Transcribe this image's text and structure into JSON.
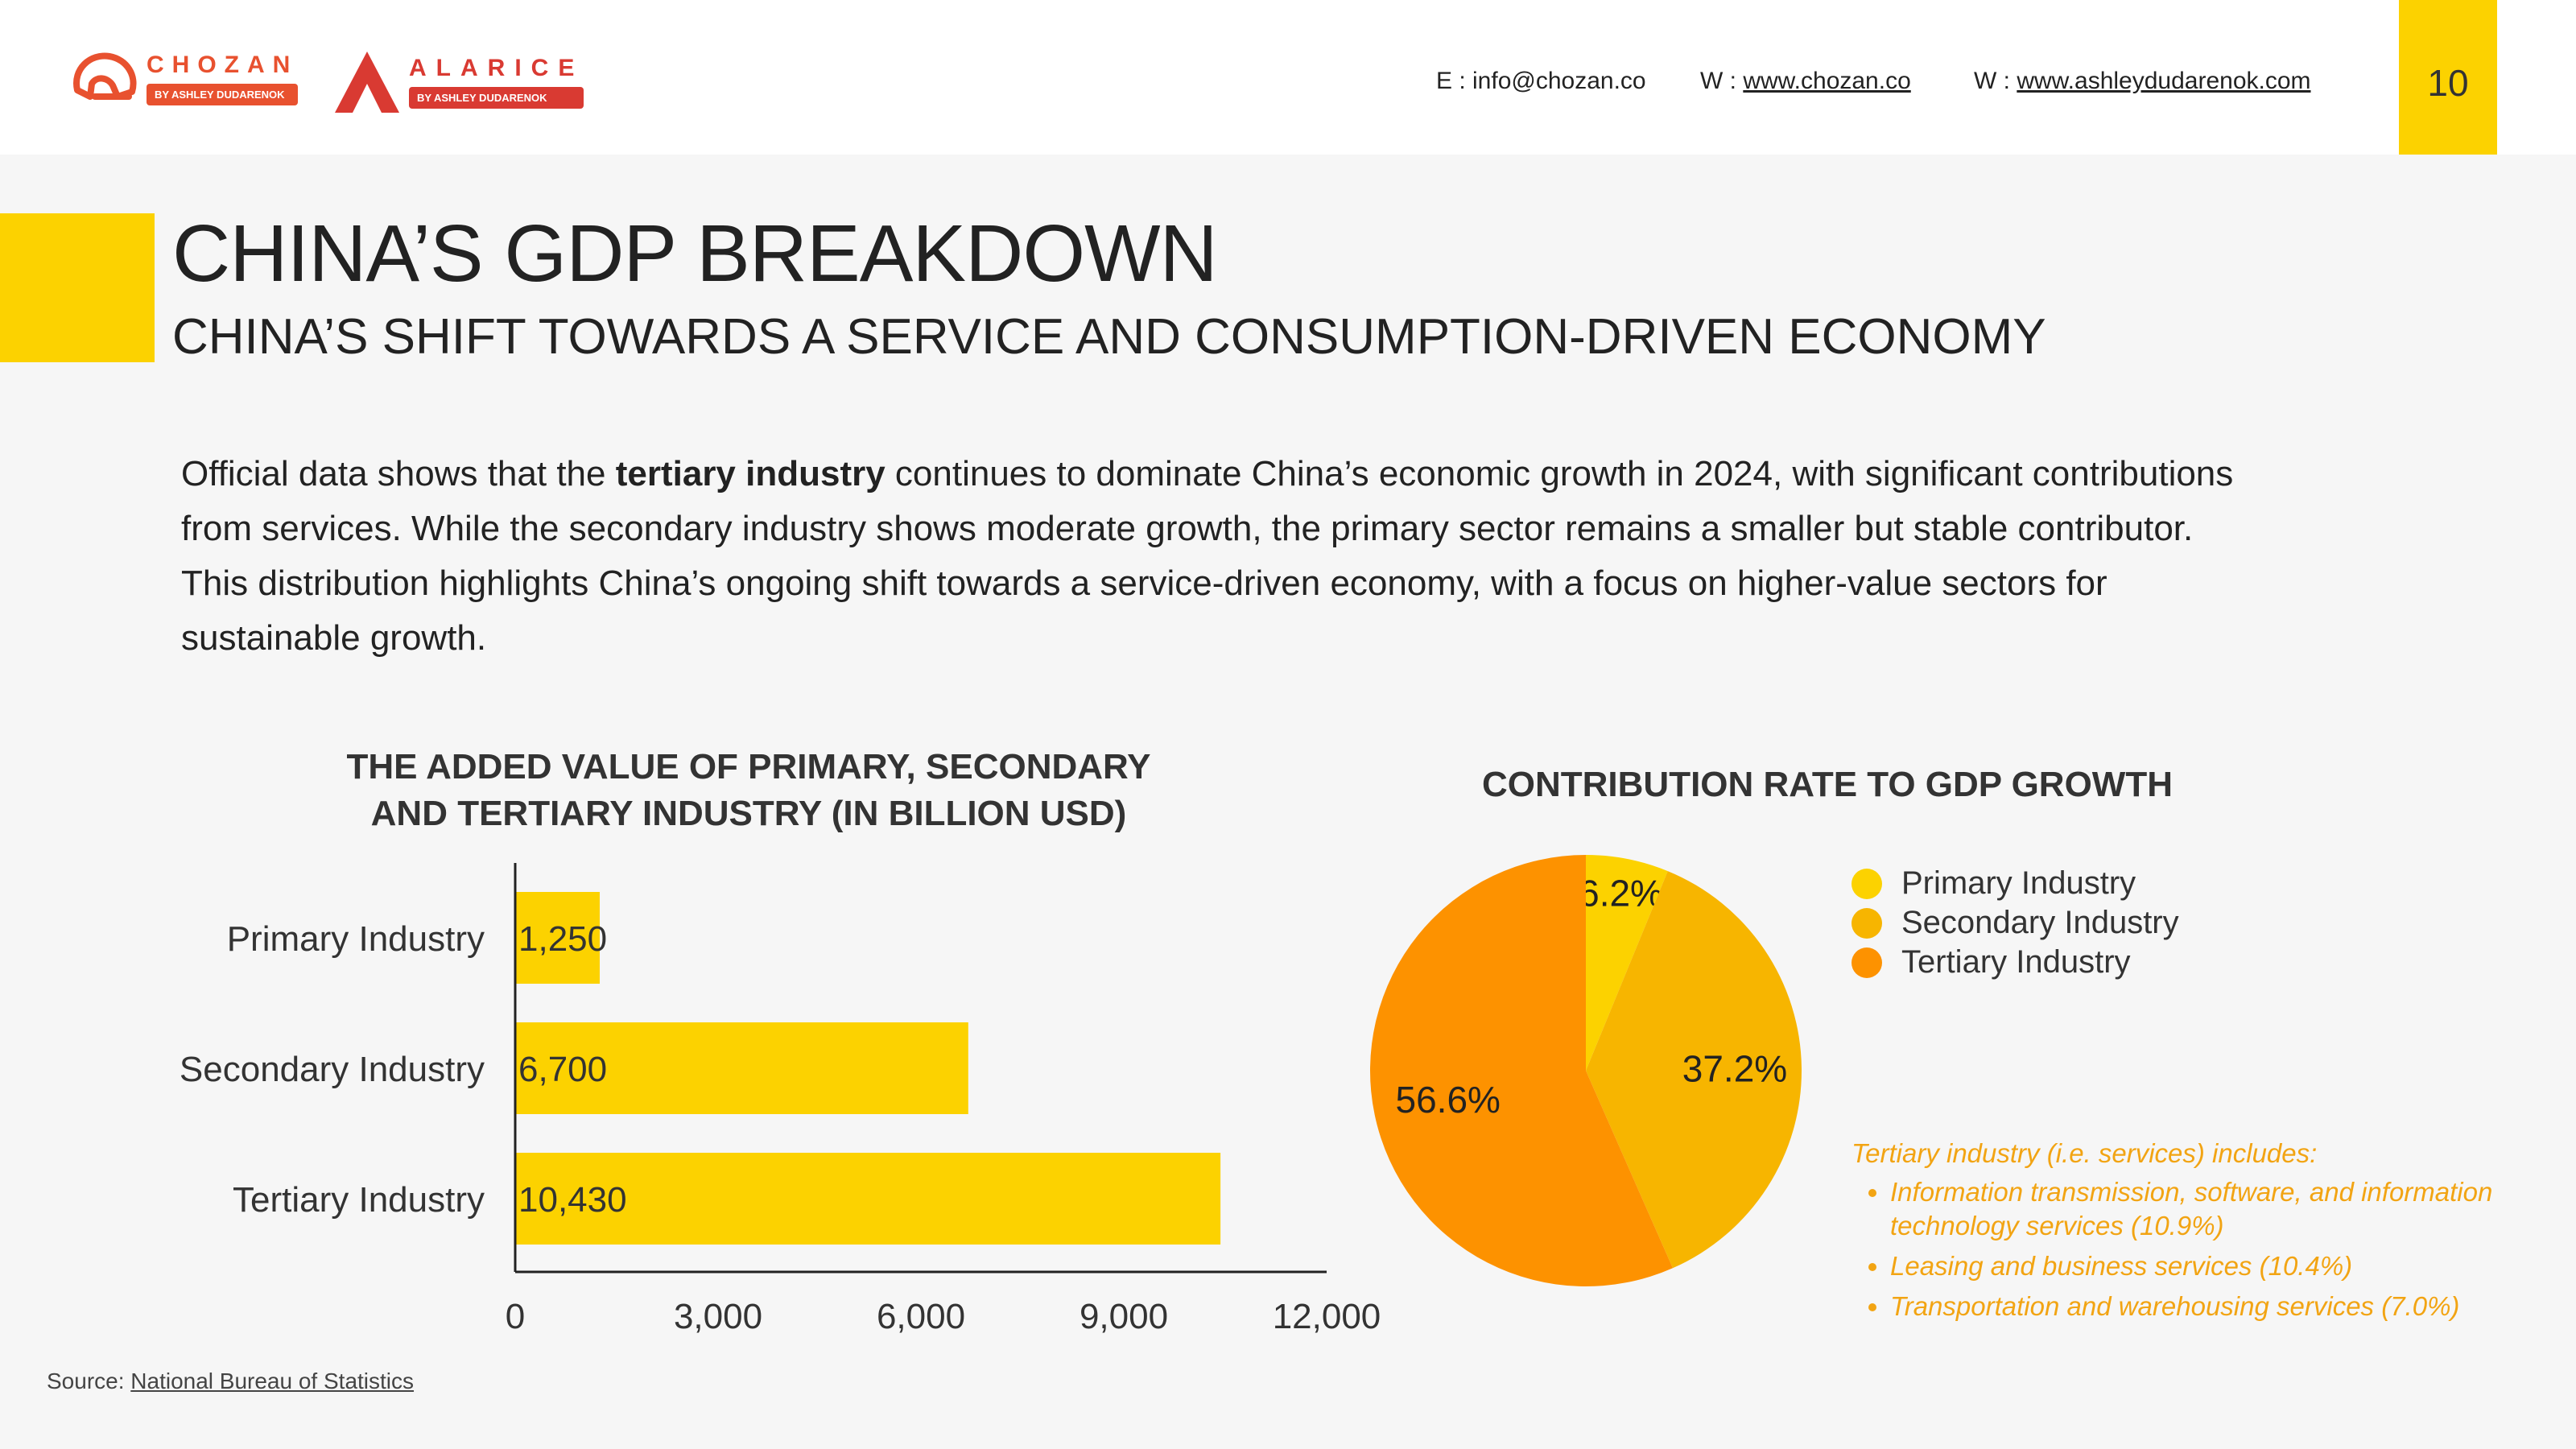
{
  "header": {
    "logos": [
      {
        "word": "CHOZAN",
        "sub": "BY ASHLEY DUDARENOK",
        "color": "#e8512f"
      },
      {
        "word": "ALARICE",
        "sub": "BY ASHLEY DUDARENOK",
        "color": "#d93a32"
      }
    ],
    "email_label": "E : info@chozan.co",
    "web1_prefix": "W : ",
    "web1_link": "www.chozan.co",
    "web2_prefix": "W : ",
    "web2_link": "www.ashleydudarenok.com",
    "page_number": "10"
  },
  "title": "CHINA’S GDP BREAKDOWN",
  "subtitle": "CHINA’S SHIFT TOWARDS A SERVICE AND CONSUMPTION-DRIVEN ECONOMY",
  "intro": {
    "before": "Official data shows that the ",
    "bold": "tertiary industry",
    "after": " continues to dominate China’s economic growth in 2024, with significant contributions from services. While the secondary industry shows moderate growth, the primary sector remains a smaller but stable contributor. This distribution highlights China’s ongoing shift towards a service-driven economy, with a focus on higher-value sectors for sustainable growth."
  },
  "colors": {
    "accent": "#fcd200",
    "primary": "#fcd200",
    "secondary": "#f7b500",
    "tertiary": "#fd9200",
    "note": "#f2a413"
  },
  "chart_data": [
    {
      "type": "bar",
      "orientation": "horizontal",
      "title_lines": [
        "THE ADDED VALUE OF PRIMARY, SECONDARY",
        "AND TERTIARY INDUSTRY (IN BILLION USD)"
      ],
      "categories": [
        "Primary Industry",
        "Secondary Industry",
        "Tertiary Industry"
      ],
      "values": [
        1250,
        6700,
        10430
      ],
      "value_labels": [
        "1,250",
        "6,700",
        "10,430"
      ],
      "xlim": [
        0,
        12000
      ],
      "xticks": [
        0,
        3000,
        6000,
        9000,
        12000
      ],
      "xtick_labels": [
        "0",
        "3,000",
        "6,000",
        "9,000",
        "12,000"
      ],
      "grid": false
    },
    {
      "type": "pie",
      "title": "CONTRIBUTION RATE TO GDP GROWTH",
      "labels": [
        "Primary Industry",
        "Secondary Industry",
        "Tertiary Industry"
      ],
      "values": [
        6.2,
        37.2,
        56.6
      ],
      "value_labels": [
        "6.2%",
        "37.2%",
        "56.6%"
      ],
      "legend_position": "right"
    }
  ],
  "note": {
    "heading": "Tertiary industry (i.e. services) includes:",
    "items": [
      "Information transmission, software, and information technology services (10.9%)",
      "Leasing and business services (10.4%)",
      "Transportation and warehousing services (7.0%)"
    ]
  },
  "source": {
    "prefix": "Source: ",
    "link": "National Bureau of Statistics"
  }
}
